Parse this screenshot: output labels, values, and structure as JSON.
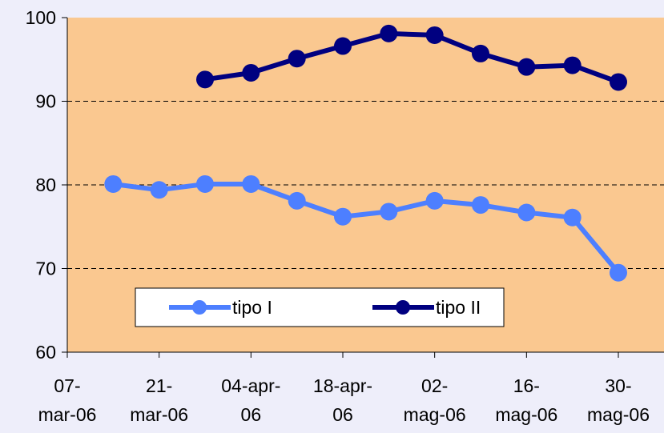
{
  "chart_data": {
    "type": "line",
    "title": "",
    "xlabel": "",
    "ylabel": "",
    "ylim": [
      60,
      100
    ],
    "y_ticks": [
      "60",
      "70",
      "80",
      "90",
      "100"
    ],
    "x_range": [
      "2006-03-07",
      "2006-05-30"
    ],
    "x_ticks": [
      {
        "date": "2006-03-07",
        "line1": "07-",
        "line2": "mar-06"
      },
      {
        "date": "2006-03-21",
        "line1": "21-",
        "line2": "mar-06"
      },
      {
        "date": "2006-04-04",
        "line1": "04-apr-",
        "line2": "06"
      },
      {
        "date": "2006-04-18",
        "line1": "18-apr-",
        "line2": "06"
      },
      {
        "date": "2006-05-02",
        "line1": "02-",
        "line2": "mag-06"
      },
      {
        "date": "2006-05-16",
        "line1": "16-",
        "line2": "mag-06"
      },
      {
        "date": "2006-05-30",
        "line1": "30-",
        "line2": "mag-06"
      }
    ],
    "grid": "horizontal dashed",
    "plot_background": "#fac890",
    "legend_position": "bottom-left inside plot",
    "series": [
      {
        "name": "tipo I",
        "color": "#4d7fff",
        "points": [
          {
            "x": "2006-03-14",
            "y": 80.1
          },
          {
            "x": "2006-03-21",
            "y": 79.4
          },
          {
            "x": "2006-03-28",
            "y": 80.1
          },
          {
            "x": "2006-04-04",
            "y": 80.1
          },
          {
            "x": "2006-04-11",
            "y": 78.1
          },
          {
            "x": "2006-04-18",
            "y": 76.2
          },
          {
            "x": "2006-04-25",
            "y": 76.8
          },
          {
            "x": "2006-05-02",
            "y": 78.1
          },
          {
            "x": "2006-05-09",
            "y": 77.6
          },
          {
            "x": "2006-05-16",
            "y": 76.7
          },
          {
            "x": "2006-05-23",
            "y": 76.1
          },
          {
            "x": "2006-05-30",
            "y": 69.5
          }
        ]
      },
      {
        "name": "tipo II",
        "color": "#000080",
        "points": [
          {
            "x": "2006-03-28",
            "y": 92.6
          },
          {
            "x": "2006-04-04",
            "y": 93.4
          },
          {
            "x": "2006-04-11",
            "y": 95.1
          },
          {
            "x": "2006-04-18",
            "y": 96.6
          },
          {
            "x": "2006-04-25",
            "y": 98.1
          },
          {
            "x": "2006-05-02",
            "y": 97.9
          },
          {
            "x": "2006-05-09",
            "y": 95.7
          },
          {
            "x": "2006-05-16",
            "y": 94.1
          },
          {
            "x": "2006-05-23",
            "y": 94.3
          },
          {
            "x": "2006-05-30",
            "y": 92.3
          }
        ]
      }
    ]
  }
}
